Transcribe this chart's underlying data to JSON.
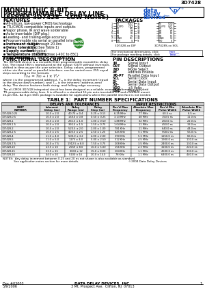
{
  "part_number": "3D7428",
  "title_line1": "MONOLITHIC 8-BIT",
  "title_line2": "PROGRAMMABLE DELAY LINE",
  "title_line3": "(SERIES 3D7428 – LOW NOISE)",
  "features_title": "FEATURES",
  "features": [
    "All-silicon, low-power CMOS technology",
    "TTL/CMOS compatible inputs and outputs",
    "Vapor phase, IR and wave solderable",
    "Auto-insertable (DIP pkg.)",
    "Leading- and trailing-edge accuracy",
    "Programmable via serial or parallel interface",
    "Increment range: 0.25 through 20.0ns",
    "Delay tolerance: 0.5% (See Table 1)",
    "Supply current: 3mA typical",
    "Temperature stability: ±1.5% max (-40C to 85C)",
    "Vdd stability: ±0.5% max (4.75V to 5.25V)"
  ],
  "packages_title": "PACKAGES",
  "functional_title": "FUNCTIONAL DESCRIPTION",
  "pin_desc_title": "PIN DESCRIPTIONS",
  "pin_descriptions": [
    [
      "IN",
      "Signal Input"
    ],
    [
      "OUT",
      "Signal Output"
    ],
    [
      "MO",
      "Mode Select"
    ],
    [
      "AE",
      "Address Enable"
    ],
    [
      "P0-P7",
      "Parallel Data Input"
    ],
    [
      "SCL",
      "Serial Clock"
    ],
    [
      "SI-",
      "Serial Data Input"
    ],
    [
      "SO-",
      "Serial Data Output"
    ],
    [
      "VDD",
      "+5 Volts"
    ],
    [
      "GND",
      "Ground"
    ]
  ],
  "table_title": "TABLE 1:  PART NUMBER SPECIFICATIONS",
  "table_data": [
    [
      "3D7428-0.25",
      "10.5 ± 2.0",
      "40.75 ± 0.4",
      "0.25 ± 0.13",
      "6.25 MHz",
      "77 MHz",
      "60.5 ns",
      "6.5 ns"
    ],
    [
      "3D7428-0.5",
      "10.5 ± 2.0",
      "138.0 ± 0.8",
      "0.50 ± 0.25",
      "3.13 MHz",
      "48 MHz",
      "150.5 ns",
      "11.0 ns"
    ],
    [
      "3D7428-1",
      "10.5 ± 2.0",
      "265.5 ± 1.0",
      "1.00 ± 0.50",
      "1.88 MHz",
      "32 MHz",
      "260.0 ns",
      "22.0 ns"
    ],
    [
      "3D7428-1.5",
      "10.5 ± 2.0",
      "392.5 ± 1.5",
      "1.50 ± 0.75",
      "1.04 MHz",
      "11 MHz",
      "450.0 ns",
      "33.0 ns"
    ],
    [
      "3D7428-2",
      "10.5 ± 2.0",
      "520.5 ± 2.0",
      "2.00 ± 1.00",
      "781 KHz",
      "11 MHz",
      "640.0 ns",
      "44.0 ns"
    ],
    [
      "3D7428-2.5",
      "10.5 ± 2.5",
      "403.5 ± 2.5",
      "2.50 ± 1.25",
      "625 KHz",
      "9.1 MHz",
      "900.0 ns",
      "55.0 ns"
    ],
    [
      "3D7428-4",
      "11.0 ± 4.0",
      "500.0 ± 3.2",
      "4.00 ± 2.00",
      "390 KHz",
      "5.5 MHz",
      "1250.0 ns",
      "66.0 ns"
    ],
    [
      "3D7428-5",
      "11.0 ± 5.0",
      "1275 ± 4.0",
      "5.00 ± 2.50",
      "312 KHz",
      "4.5 MHz",
      "1900.0 ns",
      "110.0 ns"
    ],
    [
      "3D7428-7.5",
      "20.0 ± 7.5",
      "1912.5 ± 8.0",
      "7.50 ± 3.75",
      "208 KHz",
      "3.5 MHz",
      "2400.0 ns",
      "130.0 ns"
    ],
    [
      "3D7428-10",
      "23.5 ± 10",
      "2559 ± 8.0",
      "10.0 ± 5.00",
      "156 KHz",
      "2.3 MHz",
      "3200.0 ns",
      "220.0 ns"
    ],
    [
      "3D7428-15",
      "33.5 ± 15",
      "3833 ± 12",
      "15.0 ± 8.00",
      "104 KHz",
      "1.1 MHz",
      "4500.0 ns",
      "330.0 ns"
    ],
    [
      "3D7428-20",
      "44.0 ± 20",
      "5100 ± 16",
      "20.0 ± 14.0",
      "78 KHz",
      "1.1 MHz",
      "6400.0 ns",
      "440.0 ns"
    ]
  ],
  "notes_line1": "NOTES:  Any delay increment between 0.25 and 20 ns not shown is also available as standard.",
  "notes_line2": "             See application notes section for more details.                                                          ©2004 Data Delay Devices",
  "footer_doc": "Doc #03003",
  "footer_date": "5/9/2006",
  "footer_company": "DATA DELAY DEVICES, INC.",
  "footer_address": "3 Mt. Prospect Ave.  Clifton, NJ  07013",
  "footer_page": "1",
  "bg_color": "#ffffff",
  "blue_color": "#0000cc",
  "logo_blue": "#1a56c4",
  "rohs_green": "#2d8a2d"
}
